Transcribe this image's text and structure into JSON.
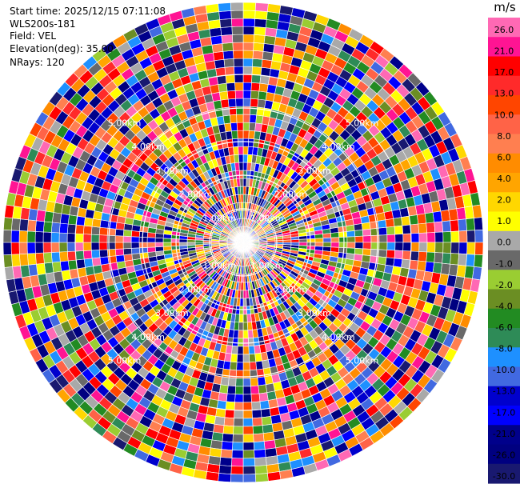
{
  "header": {
    "start_time": "Start time: 2025/12/15 07:11:08",
    "instrument": "WLS200s-181",
    "field": "Field: VEL",
    "elevation": "Elevation(deg): 35.00",
    "nrays": "NRays: 120"
  },
  "chart_data": {
    "type": "heatmap",
    "projection": "polar",
    "field": "VEL",
    "elevation_deg": 35.0,
    "nrays": 120,
    "colorbar": {
      "title": "m/s",
      "ticks": [
        "26.0",
        "21.0",
        "17.0",
        "13.0",
        "10.0",
        "8.0",
        "6.0",
        "4.0",
        "2.0",
        "1.0",
        "0.0",
        "-1.0",
        "-2.0",
        "-4.0",
        "-6.0",
        "-8.0",
        "-10.0",
        "-13.0",
        "-17.0",
        "-21.0",
        "-26.0",
        "-30.0"
      ],
      "colors": [
        "#ff69b4",
        "#ff1493",
        "#ff0000",
        "#ff2a2a",
        "#ff4500",
        "#ff6347",
        "#ff7f50",
        "#ff8c00",
        "#ffa500",
        "#ffd700",
        "#ffff00",
        "#a9a9a9",
        "#696969",
        "#9acd32",
        "#6b8e23",
        "#228b22",
        "#2e8b57",
        "#1e90ff",
        "#4169e1",
        "#0000cd",
        "#0000ff",
        "#00008b",
        "#000080",
        "#191970"
      ]
    },
    "range_rings": [
      {
        "label": "1.00km"
      },
      {
        "label": "2.00km"
      },
      {
        "label": "3.00km"
      },
      {
        "label": "4.00km"
      },
      {
        "label": "5.00km"
      }
    ]
  }
}
